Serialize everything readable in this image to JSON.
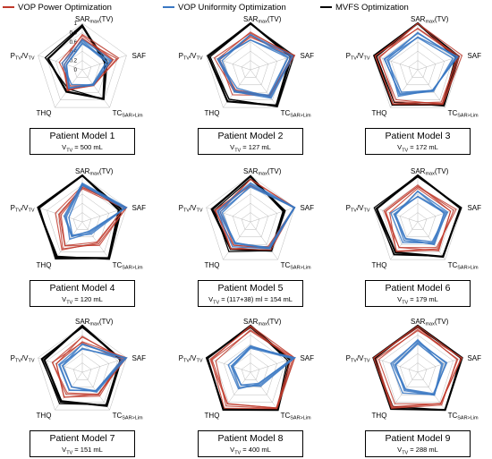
{
  "legend": [
    {
      "label": "VOP Power Optimization",
      "color": "#c0392b"
    },
    {
      "label": "VOP Uniformity Optimization",
      "color": "#3a78c3"
    },
    {
      "label": "MVFS Optimization",
      "color": "#000000"
    }
  ],
  "chart_data": {
    "type": "radar",
    "axes": [
      "SAR_max(TV)",
      "SAF",
      "TC_SAR>Lim",
      "THQ",
      "P_TV/V_TV"
    ],
    "tick_labels": [
      "0",
      "0.2",
      "0.4",
      "0.6",
      "0.8",
      "1"
    ],
    "panels": [
      {
        "title": "Patient  Model 1",
        "volume": "500 mL",
        "mvfs": [
          0.95,
          0.55,
          0.75,
          0.55,
          0.8
        ],
        "vop_uniformity": [
          0.6,
          0.6,
          0.35,
          0.45,
          0.4
        ],
        "vop_power": [
          0.7,
          0.75,
          0.35,
          0.5,
          0.45
        ]
      },
      {
        "title": "Patient  Model 2",
        "volume": "127 mL",
        "mvfs": [
          1.0,
          0.95,
          0.95,
          0.8,
          0.95
        ],
        "vop_uniformity": [
          0.7,
          0.9,
          0.7,
          0.55,
          0.7
        ],
        "vop_power": [
          0.75,
          0.95,
          0.75,
          0.6,
          0.75
        ]
      },
      {
        "title": "Patient  Model 3",
        "volume": "172 mL",
        "mvfs": [
          1.0,
          0.9,
          0.95,
          0.9,
          0.95
        ],
        "vop_uniformity": [
          0.75,
          0.85,
          0.6,
          0.65,
          0.7
        ],
        "vop_power": [
          0.95,
          0.95,
          0.85,
          0.85,
          0.9
        ]
      },
      {
        "title": "Patient  Model 4",
        "volume": "120 mL",
        "mvfs": [
          1.0,
          0.85,
          1.0,
          0.95,
          1.0
        ],
        "vop_uniformity": [
          0.8,
          1.0,
          0.3,
          0.4,
          0.35
        ],
        "vop_power": [
          0.75,
          1.0,
          0.6,
          0.7,
          0.55
        ]
      },
      {
        "title": "Patient  Model 5",
        "volume": "(117+38) ml = 154 mL",
        "mvfs": [
          0.95,
          0.75,
          0.8,
          0.75,
          0.85
        ],
        "vop_uniformity": [
          0.8,
          1.0,
          0.65,
          0.6,
          0.7
        ],
        "vop_power": [
          0.85,
          1.0,
          0.7,
          0.65,
          0.75
        ]
      },
      {
        "title": "Patient  Model 6",
        "volume": "179 mL",
        "mvfs": [
          1.0,
          0.95,
          0.95,
          0.85,
          0.95
        ],
        "vop_uniformity": [
          0.6,
          0.65,
          0.55,
          0.5,
          0.55
        ],
        "vop_power": [
          0.75,
          0.8,
          0.7,
          0.75,
          0.7
        ]
      },
      {
        "title": "Patient  Model 7",
        "volume": "151 mL",
        "mvfs": [
          1.0,
          0.85,
          0.9,
          0.8,
          0.9
        ],
        "vop_uniformity": [
          0.55,
          0.95,
          0.55,
          0.45,
          0.5
        ],
        "vop_power": [
          0.7,
          0.95,
          0.65,
          0.6,
          0.65
        ]
      },
      {
        "title": "Patient  Model 8",
        "volume": "400 mL",
        "mvfs": [
          1.0,
          0.85,
          1.0,
          1.0,
          1.0
        ],
        "vop_uniformity": [
          0.55,
          1.0,
          0.35,
          0.4,
          0.45
        ],
        "vop_power": [
          0.95,
          0.95,
          0.9,
          0.9,
          0.85
        ]
      },
      {
        "title": "Patient  Model 9",
        "volume": "288 mL",
        "mvfs": [
          1.0,
          1.0,
          1.0,
          0.95,
          1.0
        ],
        "vop_uniformity": [
          0.65,
          0.6,
          0.55,
          0.5,
          0.55
        ],
        "vop_power": [
          0.95,
          0.95,
          0.9,
          0.9,
          0.95
        ]
      }
    ]
  }
}
